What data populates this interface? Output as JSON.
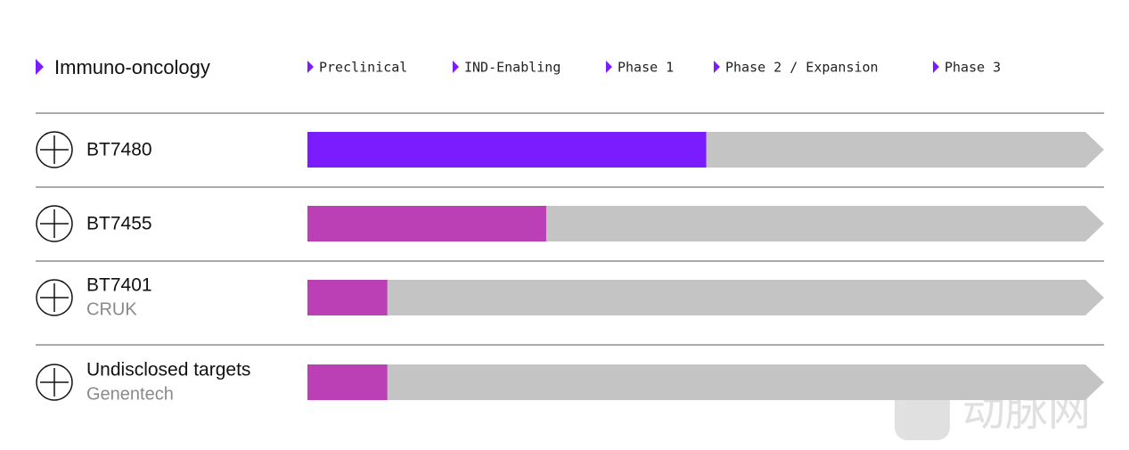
{
  "header": {
    "title": "Immuno-oncology",
    "phases": [
      "Preclinical",
      "IND-Enabling",
      "Phase 1",
      "Phase 2 / Expansion",
      "Phase 3"
    ]
  },
  "rows": [
    {
      "name": "BT7480",
      "progress": 2.93,
      "color": "#7b1cff"
    },
    {
      "name": "BT7455",
      "progress": 1.61,
      "color": "#bb3fb5"
    },
    {
      "name": "BT7401",
      "partner": "CRUK",
      "progress": 0.55,
      "color": "#bb3fb5"
    },
    {
      "name": "Undisclosed targets",
      "partner": "Genentech",
      "progress": 0.55,
      "color": "#bb3fb5"
    }
  ],
  "watermark": "动脉网"
}
